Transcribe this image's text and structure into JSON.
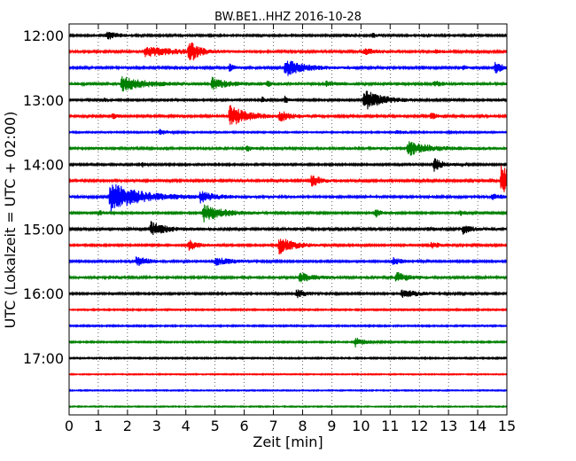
{
  "chart_data": {
    "type": "line",
    "title": "BW.BE1..HHZ 2016-10-28",
    "xlabel": "Zeit  [min]",
    "ylabel": "UTC (Lokalzeit = UTC + 02:00)",
    "xlim": [
      0,
      15
    ],
    "x_ticks": [
      "0",
      "1",
      "2",
      "3",
      "4",
      "5",
      "6",
      "7",
      "8",
      "9",
      "10",
      "11",
      "12",
      "13",
      "14",
      "15"
    ],
    "y_ticks": [
      {
        "label": "12:00",
        "row": 0
      },
      {
        "label": "13:00",
        "row": 4
      },
      {
        "label": "14:00",
        "row": 8
      },
      {
        "label": "15:00",
        "row": 12
      },
      {
        "label": "16:00",
        "row": 16
      },
      {
        "label": "17:00",
        "row": 20
      }
    ],
    "grid": {
      "vertical": true,
      "style": "dotted"
    },
    "trace_interval_minutes": 15,
    "trace_colors": [
      "#000000",
      "#ff0000",
      "#0000ff",
      "#008000"
    ],
    "noise_level": [
      0.1,
      0.12,
      0.12,
      0.14,
      0.1,
      0.12,
      0.08,
      0.14,
      0.1,
      0.12,
      0.14,
      0.1,
      0.12,
      0.1,
      0.1,
      0.14,
      0.1,
      0.08,
      0.08,
      0.08,
      0.08,
      0.06,
      0.06,
      0.06
    ],
    "series": [
      {
        "start": "12:00",
        "events": [
          {
            "t": 1.3,
            "amp": 0.45,
            "dur": 0.4
          },
          {
            "t": 9.5,
            "amp": 0.2,
            "dur": 0.2
          },
          {
            "t": 10.4,
            "amp": 0.25,
            "dur": 0.25
          },
          {
            "t": 12.3,
            "amp": 0.15,
            "dur": 0.2
          }
        ]
      },
      {
        "start": "12:15",
        "events": [
          {
            "t": 2.6,
            "amp": 0.55,
            "dur": 1.2
          },
          {
            "t": 4.1,
            "amp": 1.4,
            "dur": 0.25
          },
          {
            "t": 10.1,
            "amp": 0.35,
            "dur": 0.4
          },
          {
            "t": 12.5,
            "amp": 0.2,
            "dur": 0.3
          }
        ]
      },
      {
        "start": "12:30",
        "events": [
          {
            "t": 5.5,
            "amp": 0.45,
            "dur": 0.15
          },
          {
            "t": 7.4,
            "amp": 1.0,
            "dur": 0.6
          },
          {
            "t": 13.5,
            "amp": 0.3,
            "dur": 0.1
          },
          {
            "t": 14.6,
            "amp": 0.6,
            "dur": 0.3
          }
        ]
      },
      {
        "start": "12:45",
        "events": [
          {
            "t": 1.8,
            "amp": 0.8,
            "dur": 0.8
          },
          {
            "t": 4.9,
            "amp": 0.65,
            "dur": 0.5
          },
          {
            "t": 6.8,
            "amp": 0.25,
            "dur": 0.2
          },
          {
            "t": 8.8,
            "amp": 0.25,
            "dur": 0.3
          },
          {
            "t": 12.5,
            "amp": 0.3,
            "dur": 0.3
          }
        ]
      },
      {
        "start": "13:00",
        "events": [
          {
            "t": 1.2,
            "amp": 0.2,
            "dur": 0.2
          },
          {
            "t": 6.6,
            "amp": 0.35,
            "dur": 0.15
          },
          {
            "t": 7.4,
            "amp": 0.45,
            "dur": 0.1
          },
          {
            "t": 10.1,
            "amp": 1.25,
            "dur": 0.6
          }
        ]
      },
      {
        "start": "13:15",
        "events": [
          {
            "t": 1.5,
            "amp": 0.3,
            "dur": 0.15
          },
          {
            "t": 5.5,
            "amp": 1.2,
            "dur": 0.6
          },
          {
            "t": 7.2,
            "amp": 0.55,
            "dur": 0.4
          },
          {
            "t": 12.4,
            "amp": 0.35,
            "dur": 0.2
          }
        ]
      },
      {
        "start": "13:30",
        "events": [
          {
            "t": 3.1,
            "amp": 0.3,
            "dur": 0.3
          },
          {
            "t": 11.2,
            "amp": 0.3,
            "dur": 0.3
          },
          {
            "t": 13.0,
            "amp": 0.25,
            "dur": 0.2
          }
        ]
      },
      {
        "start": "13:45",
        "events": [
          {
            "t": 6.1,
            "amp": 0.35,
            "dur": 0.1
          },
          {
            "t": 11.6,
            "amp": 0.8,
            "dur": 0.7
          }
        ]
      },
      {
        "start": "14:00",
        "events": [
          {
            "t": 2.5,
            "amp": 0.3,
            "dur": 0.1
          },
          {
            "t": 12.5,
            "amp": 0.75,
            "dur": 0.3
          }
        ]
      },
      {
        "start": "14:15",
        "events": [
          {
            "t": 8.3,
            "amp": 0.75,
            "dur": 0.3
          },
          {
            "t": 14.8,
            "amp": 1.75,
            "dur": 0.9
          }
        ]
      },
      {
        "start": "14:30",
        "events": [
          {
            "t": 1.4,
            "amp": 1.6,
            "dur": 1.0
          },
          {
            "t": 4.5,
            "amp": 0.55,
            "dur": 0.4
          },
          {
            "t": 14.5,
            "amp": 0.3,
            "dur": 0.3
          }
        ]
      },
      {
        "start": "14:45",
        "events": [
          {
            "t": 1.0,
            "amp": 0.3,
            "dur": 0.2
          },
          {
            "t": 4.6,
            "amp": 1.0,
            "dur": 0.7
          },
          {
            "t": 10.5,
            "amp": 0.5,
            "dur": 0.2
          },
          {
            "t": 13.4,
            "amp": 0.3,
            "dur": 0.2
          }
        ]
      },
      {
        "start": "15:00",
        "events": [
          {
            "t": 2.8,
            "amp": 0.8,
            "dur": 0.5
          },
          {
            "t": 12.3,
            "amp": 0.3,
            "dur": 0.2
          },
          {
            "t": 13.5,
            "amp": 0.55,
            "dur": 0.3
          }
        ]
      },
      {
        "start": "15:15",
        "events": [
          {
            "t": 4.1,
            "amp": 0.6,
            "dur": 0.3
          },
          {
            "t": 7.2,
            "amp": 1.0,
            "dur": 0.5
          },
          {
            "t": 12.4,
            "amp": 0.4,
            "dur": 0.3
          }
        ]
      },
      {
        "start": "15:30",
        "events": [
          {
            "t": 2.3,
            "amp": 0.6,
            "dur": 0.4
          },
          {
            "t": 5.0,
            "amp": 0.45,
            "dur": 0.6
          },
          {
            "t": 11.1,
            "amp": 0.45,
            "dur": 0.3
          }
        ]
      },
      {
        "start": "15:45",
        "events": [
          {
            "t": 1.5,
            "amp": 0.15,
            "dur": 0.2
          },
          {
            "t": 7.9,
            "amp": 0.55,
            "dur": 0.4
          },
          {
            "t": 11.2,
            "amp": 0.55,
            "dur": 0.4
          }
        ]
      },
      {
        "start": "16:00",
        "events": [
          {
            "t": 7.8,
            "amp": 0.55,
            "dur": 0.3
          },
          {
            "t": 11.4,
            "amp": 0.45,
            "dur": 0.6
          }
        ]
      },
      {
        "start": "16:15",
        "events": []
      },
      {
        "start": "16:30",
        "events": []
      },
      {
        "start": "16:45",
        "events": [
          {
            "t": 9.8,
            "amp": 0.55,
            "dur": 0.3
          }
        ]
      },
      {
        "start": "17:00",
        "events": []
      },
      {
        "start": "17:15",
        "events": []
      },
      {
        "start": "17:30",
        "events": []
      },
      {
        "start": "17:45",
        "events": []
      }
    ]
  }
}
